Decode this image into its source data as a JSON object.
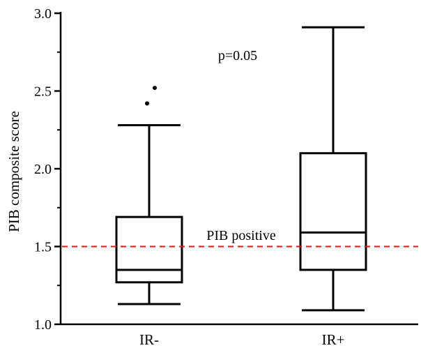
{
  "chart_data": {
    "type": "box",
    "title": "",
    "xlabel": "",
    "ylabel": "PIB composite score",
    "ylim": [
      1.0,
      3.0
    ],
    "yticks": [
      1.0,
      1.5,
      2.0,
      2.5,
      3.0
    ],
    "ytick_labels": [
      "1.0",
      "1.5",
      "2.0",
      "2.5",
      "3.0"
    ],
    "grid": false,
    "categories": [
      "IR-",
      "IR+"
    ],
    "boxes": [
      {
        "category": "IR-",
        "whisker_low": 1.13,
        "q1": 1.27,
        "median": 1.35,
        "q3": 1.69,
        "whisker_high": 2.28,
        "outliers": [
          2.42,
          2.52
        ]
      },
      {
        "category": "IR+",
        "whisker_low": 1.09,
        "q1": 1.35,
        "median": 1.59,
        "q3": 2.1,
        "whisker_high": 2.91,
        "outliers": []
      }
    ],
    "reference_line": {
      "label": "PIB positive",
      "value": 1.5,
      "color": "#e8141e"
    },
    "annotations": [
      {
        "text": "p=0.05"
      }
    ]
  }
}
